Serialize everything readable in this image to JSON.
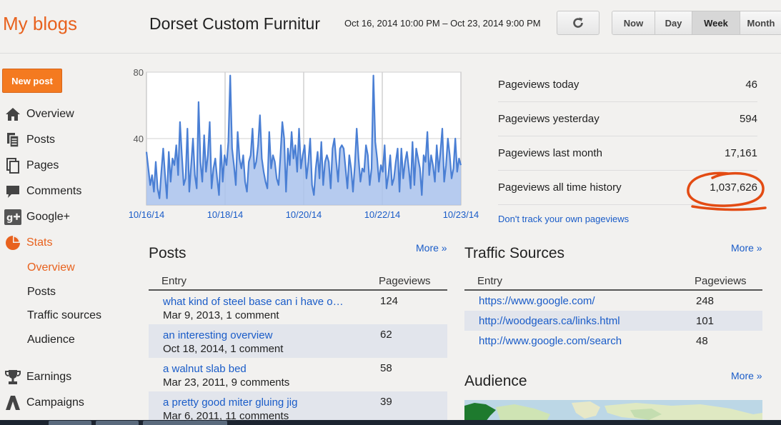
{
  "header": {
    "brand": "My blogs",
    "blog_title": "Dorset Custom Furnitur",
    "date_range": "Oct 16, 2014 10:00 PM – Oct 23, 2014 9:00 PM",
    "range_buttons": [
      {
        "label": "Now"
      },
      {
        "label": "Day"
      },
      {
        "label": "Week",
        "active": true
      },
      {
        "label": "Month"
      }
    ]
  },
  "sidebar": {
    "new_post": "New post",
    "items": [
      {
        "label": "Overview",
        "icon": "home-icon"
      },
      {
        "label": "Posts",
        "icon": "posts-icon"
      },
      {
        "label": "Pages",
        "icon": "pages-icon"
      },
      {
        "label": "Comments",
        "icon": "comment-icon"
      },
      {
        "label": "Google+",
        "icon": "google-plus-icon"
      },
      {
        "label": "Stats",
        "icon": "pie-chart-icon",
        "active": true
      }
    ],
    "stats_sub": [
      {
        "label": "Overview",
        "active": true
      },
      {
        "label": "Posts"
      },
      {
        "label": "Traffic sources"
      },
      {
        "label": "Audience"
      }
    ],
    "items_bottom": [
      {
        "label": "Earnings",
        "icon": "trophy-icon"
      },
      {
        "label": "Campaigns",
        "icon": "campaigns-icon"
      }
    ]
  },
  "chart_data": {
    "type": "area",
    "x_tick_labels": [
      "10/16/14",
      "10/18/14",
      "10/20/14",
      "10/22/14",
      "10/23/14"
    ],
    "y_tick_labels": [
      "80",
      "40"
    ],
    "ylim": [
      0,
      80
    ],
    "grid": true,
    "series": [
      {
        "values": [
          32,
          22,
          12,
          18,
          8,
          26,
          10,
          4,
          20,
          34,
          18,
          4,
          32,
          14,
          28,
          24,
          36,
          18,
          50,
          30,
          12,
          16,
          46,
          8,
          24,
          40,
          18,
          10,
          62,
          26,
          14,
          42,
          20,
          30,
          50,
          10,
          22,
          28,
          16,
          6,
          36,
          14,
          30,
          24,
          38,
          78,
          34,
          24,
          12,
          44,
          28,
          22,
          30,
          14,
          8,
          26,
          30,
          46,
          22,
          26,
          36,
          54,
          28,
          20,
          14,
          10,
          44,
          22,
          30,
          26,
          16,
          12,
          30,
          50,
          40,
          8,
          34,
          24,
          44,
          28,
          36,
          20,
          46,
          22,
          30,
          36,
          16,
          26,
          40,
          12,
          6,
          22,
          32,
          16,
          38,
          12,
          26,
          30,
          26,
          10,
          34,
          40,
          26,
          14,
          34,
          36,
          34,
          22,
          10,
          30,
          22,
          8,
          24,
          46,
          28,
          14,
          22,
          20,
          36,
          30,
          12,
          22,
          78,
          38,
          28,
          14,
          24,
          20,
          36,
          10,
          18,
          30,
          12,
          16,
          26,
          34,
          8,
          34,
          16,
          26,
          32,
          22,
          10,
          38,
          12,
          34,
          28,
          22,
          6,
          30,
          26,
          44,
          18,
          30,
          24,
          14,
          36,
          20,
          32,
          46,
          14,
          24,
          40,
          30,
          16,
          22,
          40,
          20,
          28,
          24
        ]
      }
    ]
  },
  "summary": {
    "rows": [
      {
        "label": "Pageviews today",
        "value": "46"
      },
      {
        "label": "Pageviews yesterday",
        "value": "594"
      },
      {
        "label": "Pageviews last month",
        "value": "17,161"
      },
      {
        "label": "Pageviews all time history",
        "value": "1,037,626"
      }
    ],
    "track_link": "Don't track your own pageviews",
    "circle_color": "#e34b13"
  },
  "posts": {
    "title": "Posts",
    "more": "More »",
    "col_entry": "Entry",
    "col_pageviews": "Pageviews",
    "rows": [
      {
        "title": "what kind of steel base can i have o…",
        "meta": "Mar 9, 2013, 1 comment",
        "views": "124"
      },
      {
        "title": "an interesting overview",
        "meta": "Oct 18, 2014, 1 comment",
        "views": "62"
      },
      {
        "title": "a walnut slab bed",
        "meta": "Mar 23, 2011, 9 comments",
        "views": "58"
      },
      {
        "title": "a pretty good miter gluing jig",
        "meta": "Mar 6, 2011, 11 comments",
        "views": "39"
      }
    ]
  },
  "traffic": {
    "title": "Traffic Sources",
    "more": "More »",
    "col_entry": "Entry",
    "col_pageviews": "Pageviews",
    "rows": [
      {
        "url": "https://www.google.com/",
        "views": "248"
      },
      {
        "url": "http://woodgears.ca/links.html",
        "views": "101"
      },
      {
        "url": "http://www.google.com/search",
        "views": "48"
      }
    ]
  },
  "audience": {
    "title": "Audience",
    "more": "More »"
  },
  "colors": {
    "accent": "#e8621e",
    "link": "#1a5cc8",
    "chart_line": "#4a7fd4",
    "chart_fill": "#a9c2ec"
  }
}
